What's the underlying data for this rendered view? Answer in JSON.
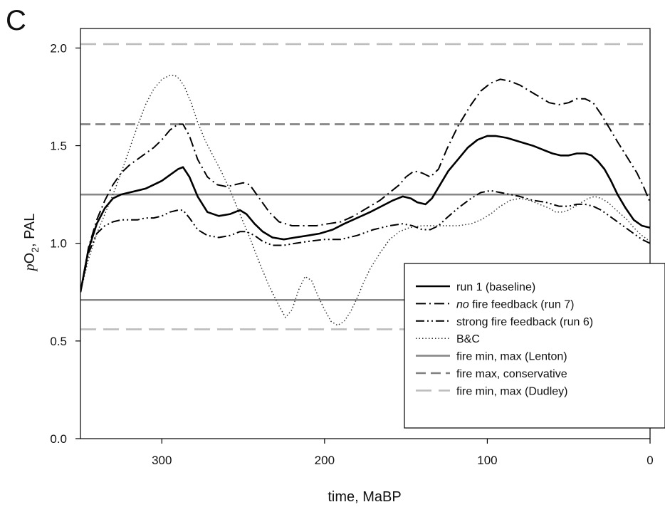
{
  "panel_label": "C",
  "chart_data": {
    "type": "line",
    "xlabel": "time, MaBP",
    "ylabel": {
      "p": "p",
      "o2": "O",
      "sub": "2",
      "unit": ", PAL"
    },
    "xlim": [
      350,
      0
    ],
    "ylim": [
      0.0,
      2.1
    ],
    "x_ticks": [
      300,
      200,
      100,
      0
    ],
    "y_ticks": [
      "0.0",
      "0.5",
      "1.0",
      "1.5",
      "2.0"
    ],
    "grid": false,
    "legend_position": "bottom-right",
    "series": [
      {
        "legend": "run 1 (baseline)",
        "style": "solid",
        "color": "#000000",
        "width": 2.6,
        "x": [
          350,
          345,
          340,
          335,
          330,
          325,
          320,
          315,
          310,
          305,
          300,
          295,
          290,
          287,
          283,
          278,
          272,
          265,
          258,
          252,
          248,
          243,
          238,
          232,
          225,
          218,
          210,
          203,
          195,
          188,
          180,
          172,
          165,
          158,
          152,
          147,
          143,
          138,
          134,
          129,
          124,
          118,
          112,
          106,
          100,
          95,
          88,
          80,
          72,
          66,
          60,
          55,
          50,
          45,
          40,
          36,
          32,
          28,
          24,
          20,
          15,
          10,
          5,
          0
        ],
        "y": [
          0.75,
          0.97,
          1.1,
          1.18,
          1.23,
          1.25,
          1.26,
          1.27,
          1.28,
          1.3,
          1.32,
          1.35,
          1.38,
          1.39,
          1.34,
          1.24,
          1.16,
          1.14,
          1.15,
          1.17,
          1.15,
          1.1,
          1.06,
          1.03,
          1.02,
          1.03,
          1.04,
          1.05,
          1.07,
          1.1,
          1.13,
          1.16,
          1.19,
          1.22,
          1.24,
          1.23,
          1.21,
          1.2,
          1.23,
          1.3,
          1.37,
          1.43,
          1.49,
          1.53,
          1.55,
          1.55,
          1.54,
          1.52,
          1.5,
          1.48,
          1.46,
          1.45,
          1.45,
          1.46,
          1.46,
          1.45,
          1.42,
          1.38,
          1.32,
          1.25,
          1.18,
          1.12,
          1.09,
          1.08
        ]
      },
      {
        "legend_pre": "no",
        "legend": " fire feedback (run 7)",
        "style": "dashdot",
        "color": "#000000",
        "width": 2.0,
        "x": [
          350,
          345,
          340,
          335,
          330,
          325,
          320,
          315,
          310,
          305,
          300,
          295,
          290,
          287,
          283,
          278,
          272,
          266,
          260,
          255,
          250,
          246,
          240,
          234,
          228,
          220,
          212,
          205,
          198,
          190,
          182,
          174,
          166,
          160,
          154,
          150,
          145,
          140,
          135,
          130,
          125,
          118,
          110,
          104,
          98,
          92,
          86,
          80,
          74,
          68,
          62,
          56,
          50,
          45,
          40,
          35,
          30,
          25,
          20,
          14,
          8,
          4,
          0
        ],
        "y": [
          0.75,
          0.98,
          1.12,
          1.22,
          1.3,
          1.36,
          1.4,
          1.43,
          1.46,
          1.49,
          1.53,
          1.58,
          1.61,
          1.61,
          1.55,
          1.43,
          1.34,
          1.3,
          1.29,
          1.3,
          1.31,
          1.3,
          1.23,
          1.16,
          1.11,
          1.09,
          1.09,
          1.09,
          1.1,
          1.11,
          1.14,
          1.18,
          1.22,
          1.26,
          1.3,
          1.34,
          1.37,
          1.36,
          1.34,
          1.38,
          1.48,
          1.6,
          1.71,
          1.78,
          1.82,
          1.84,
          1.83,
          1.81,
          1.78,
          1.75,
          1.72,
          1.71,
          1.72,
          1.74,
          1.74,
          1.72,
          1.66,
          1.59,
          1.52,
          1.44,
          1.36,
          1.29,
          1.21
        ]
      },
      {
        "legend": "strong fire feedback (run 6)",
        "style": "dashdotdot",
        "color": "#000000",
        "width": 2.0,
        "x": [
          350,
          345,
          340,
          335,
          330,
          325,
          320,
          315,
          310,
          305,
          300,
          295,
          290,
          287,
          283,
          278,
          272,
          265,
          258,
          252,
          248,
          243,
          238,
          232,
          225,
          218,
          210,
          200,
          190,
          180,
          170,
          160,
          152,
          146,
          140,
          135,
          130,
          125,
          118,
          110,
          104,
          98,
          92,
          86,
          80,
          72,
          64,
          56,
          50,
          45,
          40,
          35,
          30,
          25,
          20,
          15,
          10,
          5,
          0
        ],
        "y": [
          0.75,
          0.95,
          1.05,
          1.09,
          1.11,
          1.12,
          1.12,
          1.12,
          1.13,
          1.13,
          1.14,
          1.16,
          1.17,
          1.17,
          1.13,
          1.07,
          1.04,
          1.03,
          1.04,
          1.06,
          1.06,
          1.04,
          1.01,
          0.99,
          0.99,
          1.0,
          1.01,
          1.02,
          1.02,
          1.04,
          1.07,
          1.09,
          1.1,
          1.09,
          1.07,
          1.07,
          1.09,
          1.13,
          1.18,
          1.23,
          1.26,
          1.27,
          1.26,
          1.25,
          1.24,
          1.22,
          1.21,
          1.19,
          1.19,
          1.2,
          1.2,
          1.19,
          1.17,
          1.14,
          1.11,
          1.08,
          1.05,
          1.02,
          1.0
        ]
      },
      {
        "legend": "B&C",
        "style": "dotted",
        "color": "#333333",
        "width": 1.5,
        "x": [
          350,
          345,
          340,
          335,
          330,
          325,
          320,
          315,
          310,
          305,
          300,
          295,
          292,
          289,
          286,
          282,
          278,
          273,
          268,
          263,
          258,
          252,
          246,
          240,
          234,
          228,
          224,
          220,
          216,
          212,
          208,
          204,
          200,
          196,
          192,
          188,
          184,
          180,
          176,
          172,
          166,
          160,
          154,
          148,
          140,
          132,
          124,
          118,
          110,
          104,
          98,
          92,
          86,
          80,
          74,
          68,
          62,
          58,
          54,
          50,
          46,
          42,
          38,
          34,
          30,
          26,
          22,
          18,
          14,
          10,
          5,
          0
        ],
        "y": [
          0.75,
          0.92,
          1.05,
          1.15,
          1.25,
          1.36,
          1.48,
          1.6,
          1.71,
          1.79,
          1.84,
          1.86,
          1.86,
          1.84,
          1.8,
          1.72,
          1.62,
          1.52,
          1.44,
          1.36,
          1.27,
          1.15,
          1.03,
          0.9,
          0.78,
          0.68,
          0.62,
          0.66,
          0.76,
          0.83,
          0.81,
          0.73,
          0.66,
          0.6,
          0.58,
          0.6,
          0.65,
          0.72,
          0.8,
          0.87,
          0.95,
          1.02,
          1.06,
          1.08,
          1.09,
          1.09,
          1.09,
          1.09,
          1.1,
          1.12,
          1.15,
          1.19,
          1.22,
          1.23,
          1.22,
          1.2,
          1.18,
          1.16,
          1.16,
          1.17,
          1.19,
          1.21,
          1.23,
          1.24,
          1.23,
          1.21,
          1.18,
          1.15,
          1.12,
          1.08,
          1.04,
          1.01
        ]
      },
      {
        "legend": "fire min, max (Lenton)",
        "style": "solid",
        "color": "#888888",
        "width": 2.6,
        "hlines": [
          0.71,
          1.25
        ]
      },
      {
        "legend": "fire max, conservative",
        "style": "dashed",
        "color": "#808080",
        "width": 2.6,
        "hlines": [
          1.61
        ]
      },
      {
        "legend": "fire min, max (Dudley)",
        "style": "longdashed",
        "color": "#bdbdbd",
        "width": 2.6,
        "hlines": [
          0.56,
          2.02
        ]
      }
    ]
  }
}
